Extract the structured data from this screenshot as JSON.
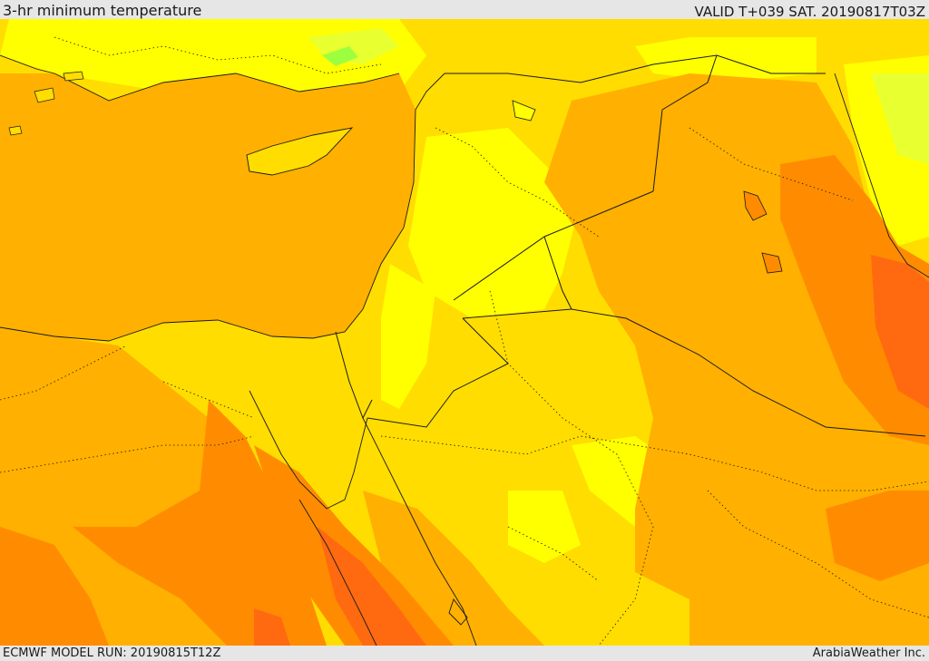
{
  "header": {
    "title": "3-hr minimum temperature",
    "valid": "VALID T+039 SAT. 20190817T03Z"
  },
  "footer": {
    "model_run": "ECMWF MODEL RUN: 20190815T12Z",
    "credit": "ArabiaWeather Inc."
  },
  "map": {
    "colors": {
      "sea": "#ffb000",
      "warm": "#ffdd00",
      "mild": "#ffff00",
      "hot": "#ff8c00",
      "hotter": "#ff6a10",
      "hottest": "#ff4a18",
      "cool": "#e8ff30",
      "coolest": "#9bff40",
      "border": "#1a1a1a"
    }
  }
}
